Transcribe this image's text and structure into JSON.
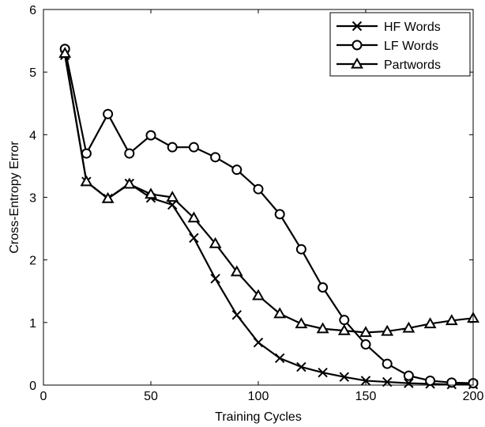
{
  "chart_data": {
    "type": "line",
    "title": "",
    "xlabel": "Training Cycles",
    "ylabel": "Cross-Entropy Error",
    "xlim": [
      0,
      200
    ],
    "ylim": [
      0,
      6
    ],
    "xticks": [
      "0",
      "50",
      "100",
      "150",
      "200"
    ],
    "yticks": [
      "0",
      "1",
      "2",
      "3",
      "4",
      "5",
      "6"
    ],
    "grid": false,
    "legend_position": "top-right",
    "x": [
      10,
      20,
      30,
      40,
      50,
      60,
      70,
      80,
      90,
      100,
      110,
      120,
      130,
      140,
      150,
      160,
      170,
      180,
      190,
      200
    ],
    "series": [
      {
        "name": "HF Words",
        "marker": "x",
        "values": [
          5.27,
          3.25,
          2.98,
          3.22,
          2.99,
          2.88,
          2.35,
          1.7,
          1.12,
          0.68,
          0.43,
          0.29,
          0.2,
          0.13,
          0.07,
          0.05,
          0.03,
          0.02,
          0.01,
          0.01
        ]
      },
      {
        "name": "LF Words",
        "marker": "circle",
        "values": [
          5.37,
          3.7,
          4.33,
          3.7,
          3.99,
          3.8,
          3.8,
          3.64,
          3.44,
          3.13,
          2.73,
          2.17,
          1.56,
          1.04,
          0.65,
          0.34,
          0.15,
          0.07,
          0.04,
          0.03
        ]
      },
      {
        "name": "Partwords",
        "marker": "triangle",
        "values": [
          5.3,
          3.25,
          2.98,
          3.21,
          3.05,
          3.0,
          2.67,
          2.26,
          1.81,
          1.43,
          1.14,
          0.98,
          0.9,
          0.87,
          0.84,
          0.86,
          0.91,
          0.98,
          1.03,
          1.07
        ]
      }
    ]
  }
}
